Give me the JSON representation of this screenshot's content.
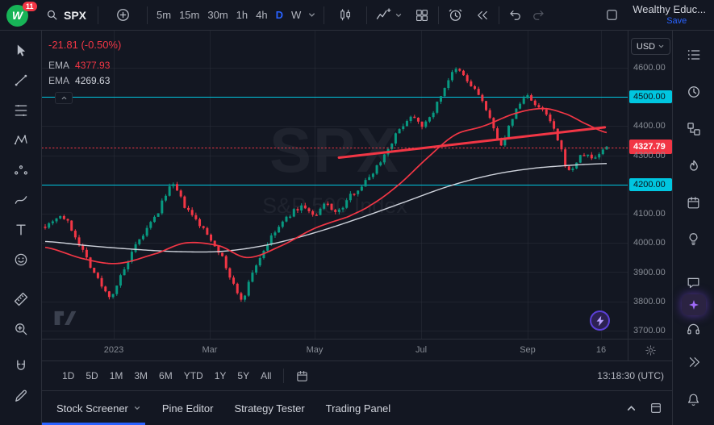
{
  "colors": {
    "background": "#131722",
    "panel_border": "#2a2e39",
    "accent_blue": "#2962ff",
    "up_green": "#089981",
    "down_red": "#f23645",
    "cyan_level": "#00c6e0",
    "text_primary": "#d1d4dc",
    "text_muted": "#868b94",
    "purple": "#5a3fd6"
  },
  "topbar": {
    "logo_letter": "W",
    "badge": "11",
    "symbol": "SPX",
    "timeframes": [
      "5m",
      "15m",
      "30m",
      "1h",
      "4h",
      "D",
      "W"
    ],
    "active_timeframe": "D",
    "account_name": "Wealthy Educ...",
    "save_label": "Save"
  },
  "legend": {
    "change_text": "-21.81 (-0.50%)",
    "indicators": [
      {
        "label": "EMA",
        "value": "4377.93"
      },
      {
        "label": "EMA",
        "value": "4269.63"
      }
    ]
  },
  "watermark": {
    "title": "SPX",
    "subtitle": "S&P 500 Index"
  },
  "price_scale": {
    "currency": "USD",
    "labels": [
      "4600.00",
      "4500.00",
      "4400.00",
      "4327.79",
      "4300.00",
      "4200.00",
      "4100.00",
      "4000.00",
      "3900.00",
      "3800.00",
      "3700.00"
    ]
  },
  "time_axis": {
    "labels": [
      "2023",
      "Mar",
      "May",
      "Jul",
      "Sep",
      "16"
    ]
  },
  "range_bar": {
    "ranges": [
      "1D",
      "5D",
      "1M",
      "3M",
      "6M",
      "YTD",
      "1Y",
      "5Y",
      "All"
    ],
    "clock": "13:18:30 (UTC)"
  },
  "bottom_panel": {
    "tabs": [
      "Stock Screener",
      "Pine Editor",
      "Strategy Tester",
      "Trading Panel"
    ]
  },
  "chart_data": {
    "type": "candlestick",
    "symbol": "SPX",
    "timeframe": "D",
    "last_price": 4327.79,
    "change": "-21.81",
    "change_percent": "-0.50%",
    "price_range": [
      3672,
      4727
    ],
    "grid_prices": [
      3700,
      3800,
      3900,
      4000,
      4100,
      4200,
      4300,
      4400,
      4500,
      4600
    ],
    "time_ticks": [
      {
        "label": "2023",
        "x": 0.123
      },
      {
        "label": "Mar",
        "x": 0.287
      },
      {
        "label": "May",
        "x": 0.466
      },
      {
        "label": "Jul",
        "x": 0.647
      },
      {
        "label": "Sep",
        "x": 0.829
      },
      {
        "label": "16",
        "x": 0.955
      }
    ],
    "candle_count": 150,
    "up_color": "#089981",
    "down_color": "#f23645",
    "price_anchors": [
      [
        0,
        4060
      ],
      [
        0.03,
        4090
      ],
      [
        0.06,
        4000
      ],
      [
        0.09,
        3890
      ],
      [
        0.115,
        3820
      ],
      [
        0.13,
        3870
      ],
      [
        0.16,
        3985
      ],
      [
        0.2,
        4100
      ],
      [
        0.225,
        4195
      ],
      [
        0.25,
        4120
      ],
      [
        0.28,
        4050
      ],
      [
        0.31,
        3970
      ],
      [
        0.335,
        3860
      ],
      [
        0.35,
        3810
      ],
      [
        0.37,
        3905
      ],
      [
        0.4,
        4010
      ],
      [
        0.43,
        4085
      ],
      [
        0.46,
        4125
      ],
      [
        0.48,
        4090
      ],
      [
        0.5,
        4135
      ],
      [
        0.52,
        4105
      ],
      [
        0.545,
        4165
      ],
      [
        0.57,
        4210
      ],
      [
        0.6,
        4290
      ],
      [
        0.63,
        4385
      ],
      [
        0.655,
        4435
      ],
      [
        0.675,
        4405
      ],
      [
        0.7,
        4485
      ],
      [
        0.72,
        4565
      ],
      [
        0.735,
        4590
      ],
      [
        0.755,
        4545
      ],
      [
        0.775,
        4500
      ],
      [
        0.79,
        4430
      ],
      [
        0.805,
        4365
      ],
      [
        0.815,
        4340
      ],
      [
        0.83,
        4420
      ],
      [
        0.845,
        4475
      ],
      [
        0.86,
        4505
      ],
      [
        0.875,
        4465
      ],
      [
        0.89,
        4445
      ],
      [
        0.905,
        4390
      ],
      [
        0.92,
        4310
      ],
      [
        0.932,
        4245
      ],
      [
        0.945,
        4275
      ],
      [
        0.96,
        4305
      ],
      [
        0.975,
        4290
      ],
      [
        1,
        4328
      ]
    ],
    "ema_fast": {
      "label": "EMA",
      "value": 4377.93,
      "color": "#f23645",
      "points": [
        [
          0,
          3985
        ],
        [
          0.07,
          3945
        ],
        [
          0.13,
          3930
        ],
        [
          0.2,
          3965
        ],
        [
          0.25,
          4000
        ],
        [
          0.31,
          3990
        ],
        [
          0.36,
          3950
        ],
        [
          0.42,
          3990
        ],
        [
          0.48,
          4050
        ],
        [
          0.54,
          4090
        ],
        [
          0.58,
          4130
        ],
        [
          0.63,
          4200
        ],
        [
          0.68,
          4290
        ],
        [
          0.73,
          4370
        ],
        [
          0.78,
          4400
        ],
        [
          0.84,
          4445
        ],
        [
          0.89,
          4460
        ],
        [
          0.93,
          4440
        ],
        [
          0.96,
          4410
        ],
        [
          1,
          4378
        ]
      ]
    },
    "ema_slow": {
      "label": "EMA",
      "value": 4269.63,
      "color": "#cfd3dc",
      "points": [
        [
          0,
          4005
        ],
        [
          0.08,
          3990
        ],
        [
          0.16,
          3978
        ],
        [
          0.24,
          3970
        ],
        [
          0.32,
          3972
        ],
        [
          0.4,
          3995
        ],
        [
          0.48,
          4035
        ],
        [
          0.56,
          4085
        ],
        [
          0.64,
          4140
        ],
        [
          0.72,
          4195
        ],
        [
          0.8,
          4235
        ],
        [
          0.88,
          4258
        ],
        [
          1,
          4272
        ]
      ]
    },
    "horizontal_levels": [
      {
        "price": 4500,
        "color": "#00c6e0"
      },
      {
        "price": 4200,
        "color": "#00c6e0"
      }
    ],
    "price_line": {
      "price": 4327.79,
      "color": "#f23645"
    },
    "trendline": {
      "x1": 0.507,
      "price1": 4292,
      "x2": 0.961,
      "price2": 4396,
      "color": "#f23645",
      "width": 3
    }
  }
}
